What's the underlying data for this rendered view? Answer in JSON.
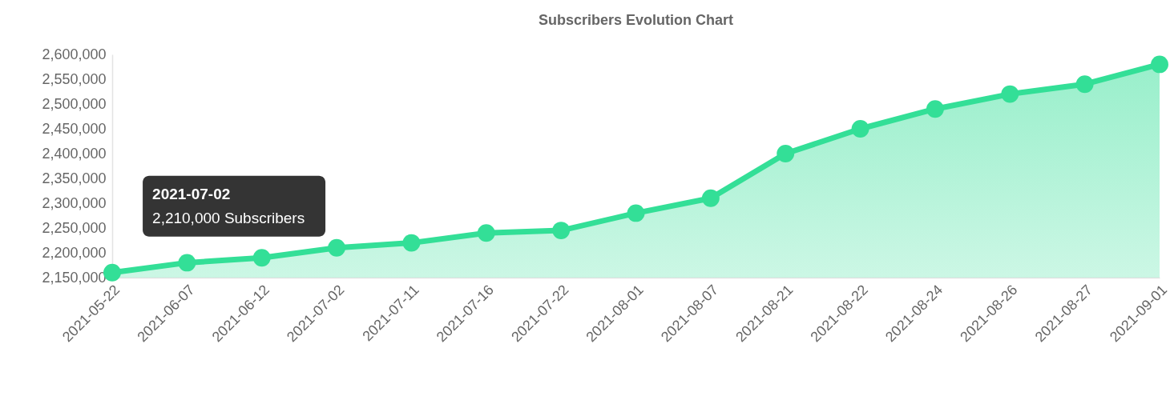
{
  "chart_data": {
    "type": "area",
    "title": "Subscribers Evolution Chart",
    "categories": [
      "2021-05-22",
      "2021-06-07",
      "2021-06-12",
      "2021-07-02",
      "2021-07-11",
      "2021-07-16",
      "2021-07-22",
      "2021-08-01",
      "2021-08-07",
      "2021-08-21",
      "2021-08-22",
      "2021-08-24",
      "2021-08-26",
      "2021-08-27",
      "2021-09-01"
    ],
    "series": [
      {
        "color": "#33df97",
        "values": [
          2160000,
          2180000,
          2190000,
          2210000,
          2220000,
          2240000,
          2245000,
          2280000,
          2310000,
          2400000,
          2450000,
          2490000,
          2520000,
          2540000,
          2580000
        ]
      }
    ],
    "ylim": [
      2150000,
      2600000
    ],
    "yticks": [
      {
        "value": 2150000,
        "label": "2,150,000"
      },
      {
        "value": 2200000,
        "label": "2,200,000"
      },
      {
        "value": 2250000,
        "label": "2,250,000"
      },
      {
        "value": 2300000,
        "label": "2,300,000"
      },
      {
        "value": 2350000,
        "label": "2,350,000"
      },
      {
        "value": 2400000,
        "label": "2,400,000"
      },
      {
        "value": 2450000,
        "label": "2,450,000"
      },
      {
        "value": 2500000,
        "label": "2,500,000"
      },
      {
        "value": 2550000,
        "label": "2,550,000"
      },
      {
        "value": 2600000,
        "label": "2,600,000"
      }
    ],
    "grid": false,
    "marker": "circle",
    "annotations": [
      "2021-07-02",
      {
        "text": "2,210,000 Subscribers",
        "x": "2021-07-02",
        "y": 2210000
      }
    ]
  }
}
